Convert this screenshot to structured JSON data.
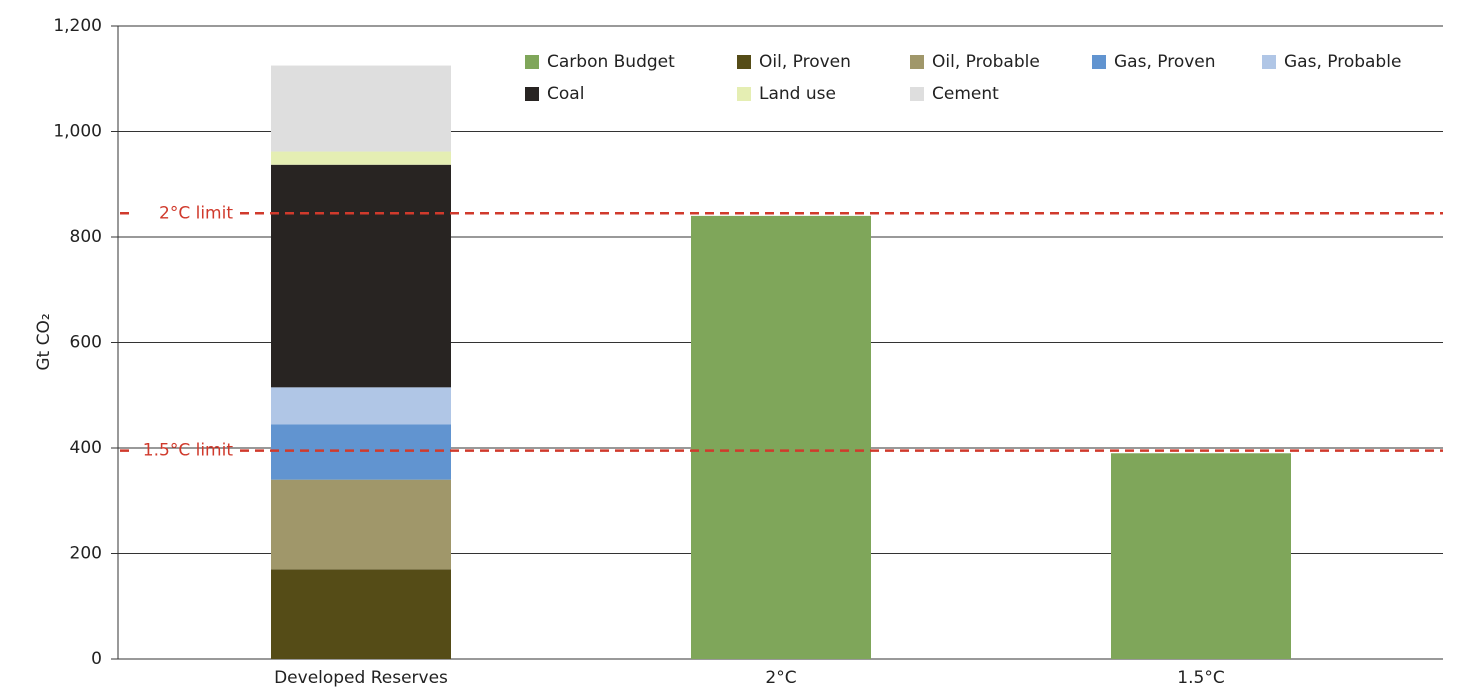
{
  "chart_data": {
    "type": "stacked_bar",
    "y_label": "Gt CO₂",
    "categories": [
      "Developed Reserves",
      "2°C",
      "1.5°C"
    ],
    "series": [
      {
        "name": "Carbon Budget",
        "color": "#7fa65a",
        "values": [
          null,
          840,
          390
        ]
      },
      {
        "name": "Oil, Proven",
        "color": "#554c17",
        "values": [
          170,
          null,
          null
        ]
      },
      {
        "name": "Oil, Probable",
        "color": "#a0976a",
        "values": [
          170,
          null,
          null
        ]
      },
      {
        "name": "Gas, Proven",
        "color": "#6194d0",
        "values": [
          105,
          null,
          null
        ]
      },
      {
        "name": "Gas, Probable",
        "color": "#b0c6e6",
        "values": [
          70,
          null,
          null
        ]
      },
      {
        "name": "Coal",
        "color": "#282422",
        "values": [
          422,
          null,
          null
        ]
      },
      {
        "name": "Land use",
        "color": "#e5eeb3",
        "values": [
          25,
          null,
          null
        ]
      },
      {
        "name": "Cement",
        "color": "#dedede",
        "values": [
          163,
          null,
          null
        ]
      }
    ],
    "reference_lines": [
      {
        "label": "2°C limit",
        "value": 845,
        "color": "#d03a2c"
      },
      {
        "label": "1.5°C limit",
        "value": 395,
        "color": "#d03a2c"
      }
    ],
    "ylim": [
      0,
      1200
    ],
    "yticks": [
      0,
      200,
      400,
      600,
      800,
      {
        "value": 1000,
        "label": "1,000"
      },
      {
        "value": 1200,
        "label": "1,200"
      }
    ],
    "grid": true
  }
}
